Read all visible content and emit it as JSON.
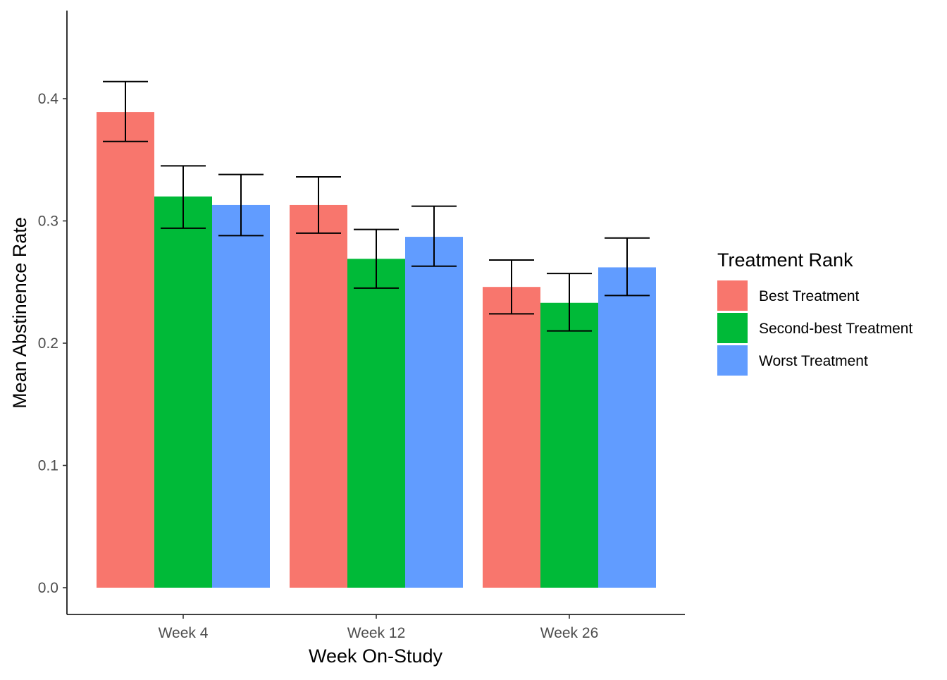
{
  "chart_data": {
    "type": "bar",
    "title": "",
    "xlabel": "Week On-Study",
    "ylabel": "Mean Abstinence Rate",
    "categories": [
      "Week 4",
      "Week 12",
      "Week 26"
    ],
    "series": [
      {
        "name": "Best Treatment",
        "color": "#F8766D",
        "values": [
          0.389,
          0.313,
          0.246
        ],
        "error_low": [
          0.365,
          0.29,
          0.224
        ],
        "error_high": [
          0.414,
          0.336,
          0.268
        ]
      },
      {
        "name": "Second-best Treatment",
        "color": "#00BA38",
        "values": [
          0.32,
          0.269,
          0.233
        ],
        "error_low": [
          0.294,
          0.245,
          0.21
        ],
        "error_high": [
          0.345,
          0.293,
          0.257
        ]
      },
      {
        "name": "Worst Treatment",
        "color": "#619CFF",
        "values": [
          0.313,
          0.287,
          0.262
        ],
        "error_low": [
          0.288,
          0.263,
          0.239
        ],
        "error_high": [
          0.338,
          0.312,
          0.286
        ]
      }
    ],
    "ylim": [
      0.0,
      0.4
    ],
    "yticks": [
      0.0,
      0.1,
      0.2,
      0.3,
      0.4
    ],
    "ytick_labels": [
      "0.0",
      "0.1",
      "0.2",
      "0.3",
      "0.4"
    ],
    "grid": false,
    "legend": {
      "title": "Treatment Rank",
      "placement": "right"
    }
  }
}
